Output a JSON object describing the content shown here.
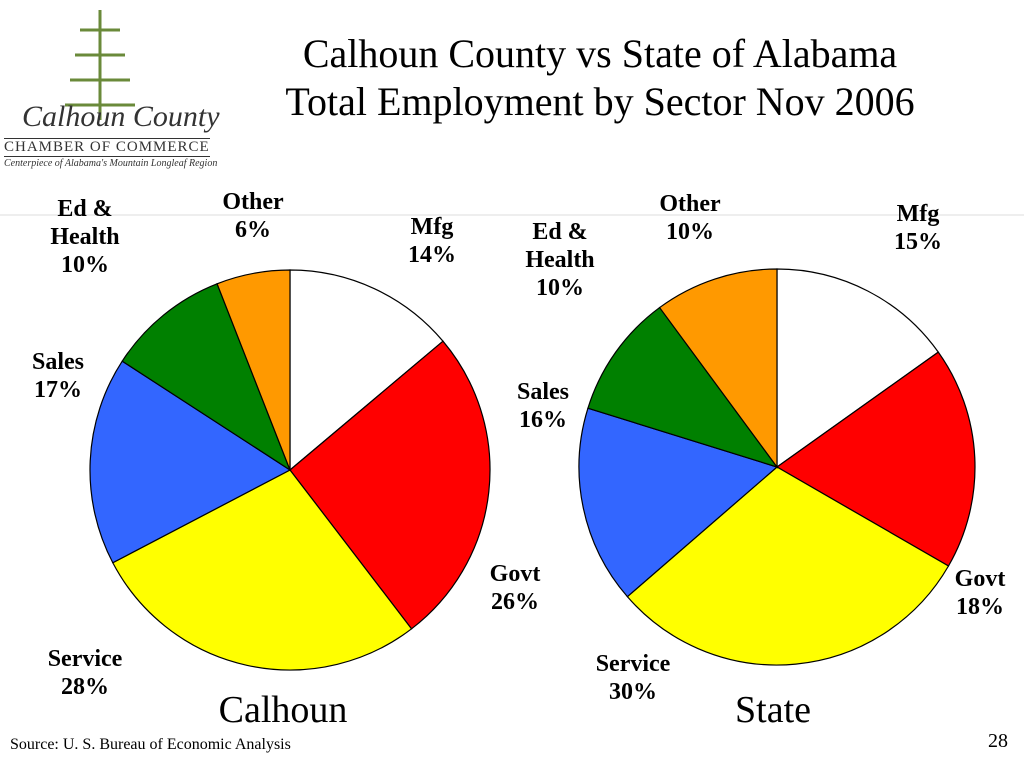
{
  "slide_title": [
    "Calhoun County vs State of Alabama",
    "Total Employment by Sector Nov 2006"
  ],
  "logo": {
    "name": "Calhoun County",
    "org": "CHAMBER OF COMMERCE",
    "tagline": "Centerpiece of Alabama's Mountain Longleaf Region"
  },
  "source": "Source: U. S. Bureau of Economic Analysis",
  "page_number": "28",
  "chart_data": [
    {
      "type": "pie",
      "title": "Calhoun",
      "categories": [
        "Mfg",
        "Govt",
        "Service",
        "Sales",
        "Ed & Health",
        "Other"
      ],
      "values": [
        14,
        26,
        28,
        17,
        10,
        6
      ],
      "value_labels": [
        "14%",
        "26%",
        "28%",
        "17%",
        "10%",
        "6%"
      ],
      "colors": [
        "#ffffff",
        "#ff0000",
        "#ffff00",
        "#3366ff",
        "#008000",
        "#ff9900"
      ]
    },
    {
      "type": "pie",
      "title": "State",
      "categories": [
        "Mfg",
        "Govt",
        "Service",
        "Sales",
        "Ed & Health",
        "Other"
      ],
      "values": [
        15,
        18,
        30,
        16,
        10,
        10
      ],
      "value_labels": [
        "15%",
        "18%",
        "30%",
        "16%",
        "10%",
        "10%"
      ],
      "colors": [
        "#ffffff",
        "#ff0000",
        "#ffff00",
        "#3366ff",
        "#008000",
        "#ff9900"
      ]
    }
  ]
}
